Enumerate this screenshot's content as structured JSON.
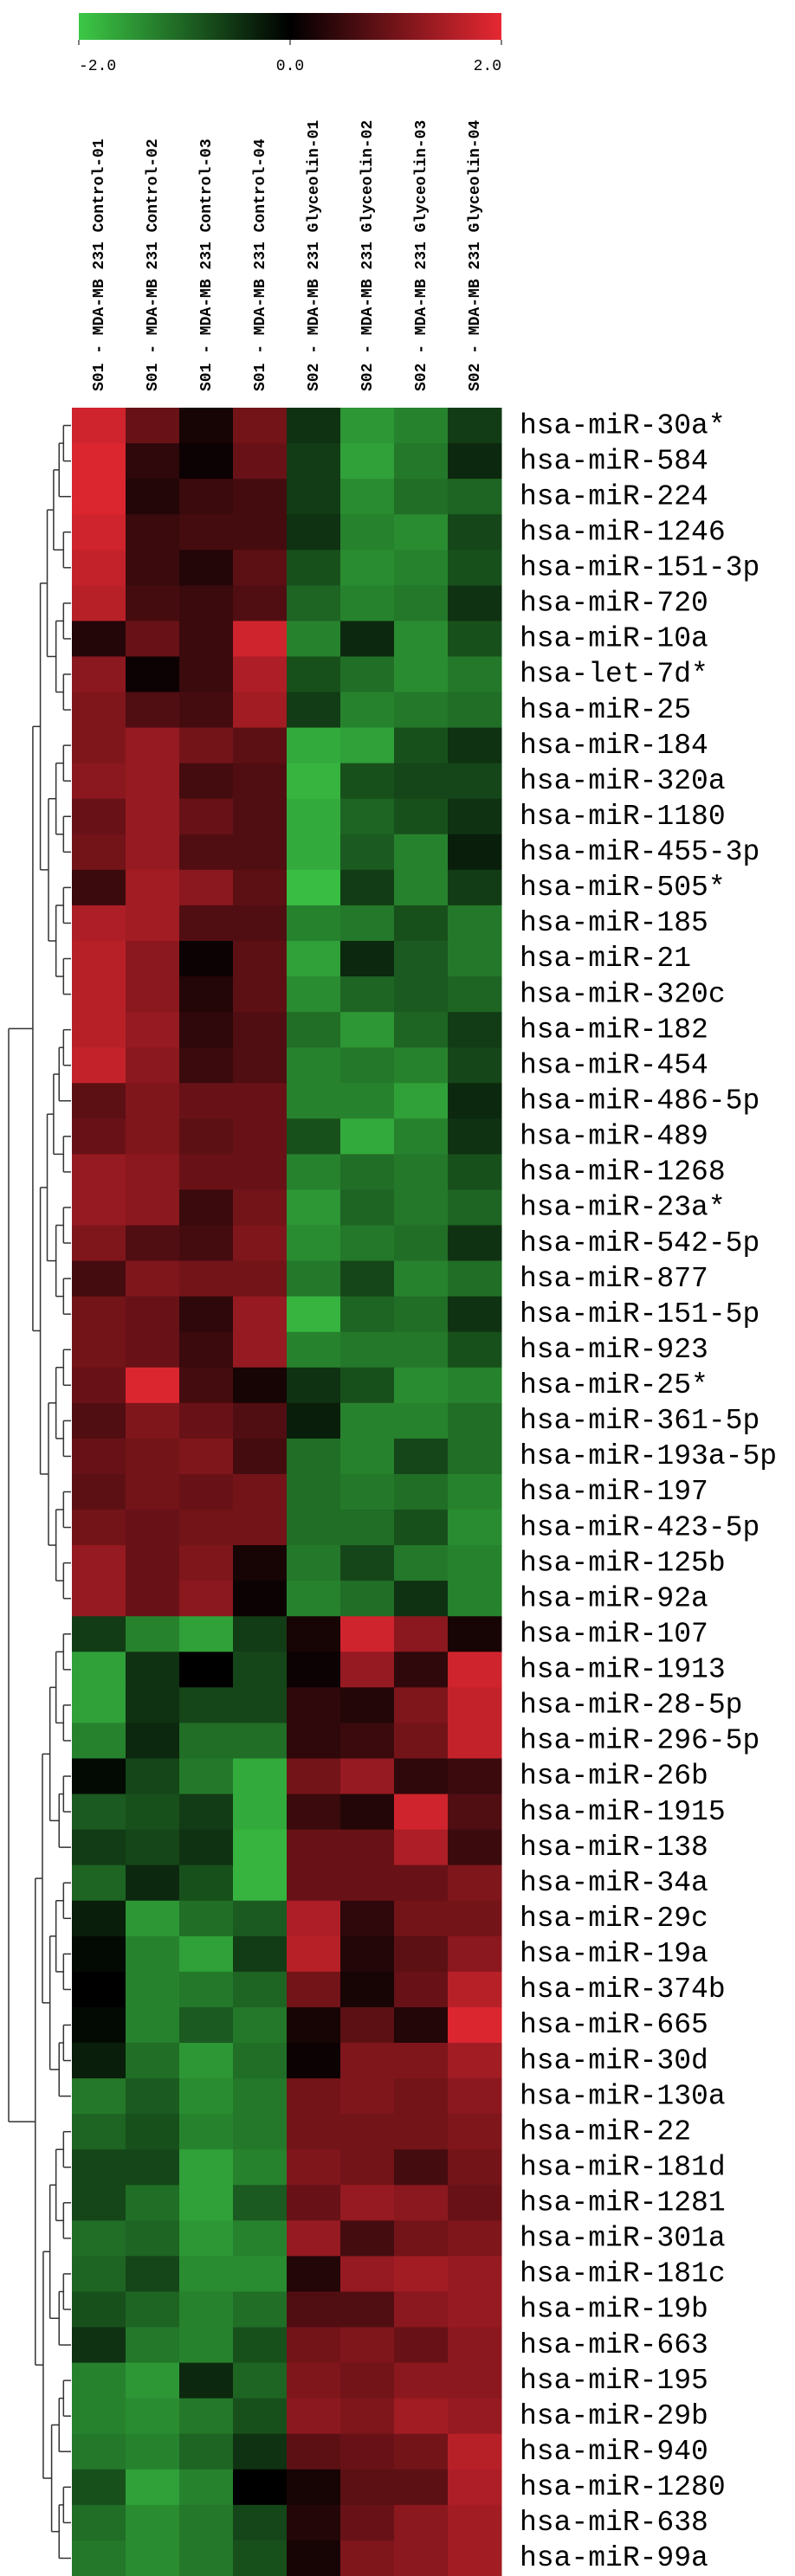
{
  "chart_data": {
    "type": "heatmap",
    "colors": [
      "#3cc846",
      "#000000",
      "#e62832"
    ],
    "zlim": [
      -2,
      2
    ],
    "colorbar_ticks": [
      {
        "value": -2,
        "label": "-2.0"
      },
      {
        "value": 0,
        "label": "0.0"
      },
      {
        "value": 2,
        "label": "2.0"
      }
    ],
    "columns": [
      "S01 - MDA-MB 231 Control-01",
      "S01 - MDA-MB 231 Control-02",
      "S01 - MDA-MB 231 Control-03",
      "S01 - MDA-MB 231 Control-04",
      "S02 - MDA-MB 231 Glyceolin-01",
      "S02 - MDA-MB 231 Glyceolin-02",
      "S02 - MDA-MB 231 Glyceolin-03",
      "S02 - MDA-MB 231 Glyceolin-04"
    ],
    "rows": [
      "hsa-miR-30a*",
      "hsa-miR-584",
      "hsa-miR-224",
      "hsa-miR-1246",
      "hsa-miR-151-3p",
      "hsa-miR-720",
      "hsa-miR-10a",
      "hsa-let-7d*",
      "hsa-miR-25",
      "hsa-miR-184",
      "hsa-miR-320a",
      "hsa-miR-1180",
      "hsa-miR-455-3p",
      "hsa-miR-505*",
      "hsa-miR-185",
      "hsa-miR-21",
      "hsa-miR-320c",
      "hsa-miR-182",
      "hsa-miR-454",
      "hsa-miR-486-5p",
      "hsa-miR-489",
      "hsa-miR-1268",
      "hsa-miR-23a*",
      "hsa-miR-542-5p",
      "hsa-miR-877",
      "hsa-miR-151-5p",
      "hsa-miR-923",
      "hsa-miR-25*",
      "hsa-miR-361-5p",
      "hsa-miR-193a-5p",
      "hsa-miR-197",
      "hsa-miR-423-5p",
      "hsa-miR-125b",
      "hsa-miR-92a",
      "hsa-miR-107",
      "hsa-miR-1913",
      "hsa-miR-28-5p",
      "hsa-miR-296-5p",
      "hsa-miR-26b",
      "hsa-miR-1915",
      "hsa-miR-138",
      "hsa-miR-34a",
      "hsa-miR-29c",
      "hsa-miR-19a",
      "hsa-miR-374b",
      "hsa-miR-665",
      "hsa-miR-30d",
      "hsa-miR-130a",
      "hsa-miR-22",
      "hsa-miR-181d",
      "hsa-miR-1281",
      "hsa-miR-301a",
      "hsa-miR-181c",
      "hsa-miR-19b",
      "hsa-miR-663",
      "hsa-miR-195",
      "hsa-miR-29b",
      "hsa-miR-940",
      "hsa-miR-1280",
      "hsa-miR-638",
      "hsa-miR-99a"
    ],
    "values": [
      [
        1.8,
        0.9,
        0.2,
        1.0,
        -0.5,
        -1.5,
        -1.3,
        -0.6
      ],
      [
        1.9,
        0.4,
        0.1,
        0.9,
        -0.6,
        -1.6,
        -1.2,
        -0.4
      ],
      [
        1.9,
        0.3,
        0.5,
        0.6,
        -0.6,
        -1.4,
        -1.1,
        -1.0
      ],
      [
        1.8,
        0.5,
        0.6,
        0.6,
        -0.5,
        -1.3,
        -1.4,
        -0.7
      ],
      [
        1.7,
        0.5,
        0.3,
        0.8,
        -0.8,
        -1.4,
        -1.3,
        -0.8
      ],
      [
        1.6,
        0.6,
        0.5,
        0.7,
        -1.0,
        -1.3,
        -1.2,
        -0.5
      ],
      [
        0.3,
        0.9,
        0.5,
        1.8,
        -1.3,
        -0.4,
        -1.4,
        -0.8
      ],
      [
        1.2,
        0.1,
        0.5,
        1.5,
        -0.8,
        -1.1,
        -1.4,
        -1.2
      ],
      [
        1.1,
        0.7,
        0.6,
        1.4,
        -0.6,
        -1.3,
        -1.2,
        -1.1
      ],
      [
        1.1,
        1.3,
        1.0,
        0.8,
        -1.7,
        -1.6,
        -0.8,
        -0.5
      ],
      [
        1.2,
        1.3,
        0.6,
        0.7,
        -1.8,
        -0.8,
        -0.7,
        -0.7
      ],
      [
        0.9,
        1.3,
        0.9,
        0.7,
        -1.7,
        -1.0,
        -0.8,
        -0.5
      ],
      [
        1.0,
        1.3,
        0.7,
        0.7,
        -1.7,
        -0.9,
        -1.3,
        -0.3
      ],
      [
        0.5,
        1.4,
        1.2,
        0.8,
        -1.9,
        -0.6,
        -1.3,
        -0.6
      ],
      [
        1.5,
        1.4,
        0.7,
        0.7,
        -1.3,
        -1.2,
        -0.8,
        -1.2
      ],
      [
        1.6,
        1.2,
        0.1,
        0.8,
        -1.6,
        -0.4,
        -0.9,
        -1.2
      ],
      [
        1.6,
        1.2,
        0.3,
        0.8,
        -1.4,
        -1.0,
        -0.9,
        -1.0
      ],
      [
        1.6,
        1.3,
        0.4,
        0.7,
        -1.1,
        -1.5,
        -1.0,
        -0.6
      ],
      [
        1.7,
        1.2,
        0.5,
        0.7,
        -1.3,
        -1.2,
        -1.3,
        -0.7
      ],
      [
        0.8,
        1.1,
        0.9,
        0.9,
        -1.3,
        -1.3,
        -1.6,
        -0.4
      ],
      [
        0.9,
        1.1,
        0.8,
        0.9,
        -0.8,
        -1.7,
        -1.3,
        -0.5
      ],
      [
        1.3,
        1.2,
        0.9,
        0.9,
        -1.3,
        -1.1,
        -1.2,
        -0.8
      ],
      [
        1.3,
        1.2,
        0.5,
        1.0,
        -1.5,
        -1.0,
        -1.2,
        -1.0
      ],
      [
        1.1,
        0.7,
        0.6,
        1.1,
        -1.4,
        -1.2,
        -1.1,
        -0.5
      ],
      [
        0.6,
        1.1,
        1.0,
        1.0,
        -1.2,
        -0.7,
        -1.3,
        -1.1
      ],
      [
        1.0,
        0.9,
        0.4,
        1.3,
        -1.8,
        -1.0,
        -1.1,
        -0.5
      ],
      [
        1.0,
        0.9,
        0.5,
        1.3,
        -1.3,
        -1.2,
        -1.2,
        -0.8
      ],
      [
        0.9,
        1.9,
        0.6,
        0.2,
        -0.5,
        -0.8,
        -1.4,
        -1.3
      ],
      [
        0.7,
        1.1,
        0.9,
        0.7,
        -0.3,
        -1.3,
        -1.3,
        -1.1
      ],
      [
        0.9,
        1.0,
        1.1,
        0.6,
        -1.1,
        -1.3,
        -0.7,
        -1.1
      ],
      [
        0.8,
        1.0,
        0.9,
        1.0,
        -1.1,
        -1.2,
        -1.1,
        -1.3
      ],
      [
        1.0,
        0.9,
        1.0,
        1.0,
        -1.1,
        -1.1,
        -0.8,
        -1.4
      ],
      [
        1.3,
        0.9,
        1.1,
        0.2,
        -1.2,
        -0.7,
        -1.2,
        -1.3
      ],
      [
        1.3,
        0.9,
        1.2,
        0.1,
        -1.3,
        -1.1,
        -0.5,
        -1.3
      ],
      [
        -0.6,
        -1.3,
        -1.6,
        -0.6,
        0.2,
        1.8,
        1.2,
        0.2
      ],
      [
        -1.6,
        -0.5,
        0.0,
        -0.7,
        0.1,
        1.3,
        0.4,
        1.8
      ],
      [
        -1.6,
        -0.5,
        -0.7,
        -0.7,
        0.4,
        0.3,
        1.1,
        1.7
      ],
      [
        -1.3,
        -0.4,
        -1.1,
        -1.1,
        0.4,
        0.5,
        1.0,
        1.7
      ],
      [
        -0.1,
        -0.7,
        -1.2,
        -1.7,
        1.0,
        1.3,
        0.4,
        0.5
      ],
      [
        -0.9,
        -0.8,
        -0.6,
        -1.7,
        0.5,
        0.3,
        1.8,
        0.7
      ],
      [
        -0.6,
        -0.7,
        -0.5,
        -1.8,
        0.9,
        0.9,
        1.5,
        0.5
      ],
      [
        -1.0,
        -0.4,
        -0.8,
        -1.8,
        0.9,
        0.9,
        0.9,
        1.1
      ],
      [
        -0.3,
        -1.5,
        -1.1,
        -0.9,
        1.5,
        0.4,
        1.0,
        1.0
      ],
      [
        -0.1,
        -1.3,
        -1.6,
        -0.6,
        1.6,
        0.3,
        0.8,
        1.2
      ],
      [
        0.0,
        -1.3,
        -1.2,
        -1.0,
        1.0,
        0.2,
        0.9,
        1.6
      ],
      [
        -0.1,
        -1.3,
        -0.9,
        -1.2,
        0.2,
        0.8,
        0.3,
        1.9
      ],
      [
        -0.3,
        -1.1,
        -1.5,
        -1.1,
        0.1,
        1.1,
        1.1,
        1.4
      ],
      [
        -1.2,
        -0.9,
        -1.4,
        -1.2,
        1.0,
        1.1,
        1.0,
        1.2
      ],
      [
        -1.0,
        -0.8,
        -1.3,
        -1.2,
        1.0,
        1.0,
        1.0,
        1.1
      ],
      [
        -0.7,
        -0.7,
        -1.6,
        -1.3,
        1.1,
        1.0,
        0.6,
        1.0
      ],
      [
        -0.7,
        -1.1,
        -1.6,
        -0.9,
        0.9,
        1.3,
        1.2,
        0.9
      ],
      [
        -1.1,
        -1.0,
        -1.5,
        -1.3,
        1.3,
        0.6,
        1.0,
        1.1
      ],
      [
        -1.0,
        -0.7,
        -1.4,
        -1.4,
        0.3,
        1.3,
        1.4,
        1.3
      ],
      [
        -0.8,
        -1.0,
        -1.3,
        -1.1,
        0.7,
        0.7,
        1.2,
        1.3
      ],
      [
        -0.5,
        -1.2,
        -1.3,
        -0.8,
        1.0,
        1.1,
        0.9,
        1.2
      ],
      [
        -1.3,
        -1.5,
        -0.4,
        -1.0,
        1.1,
        1.0,
        1.2,
        1.2
      ],
      [
        -1.3,
        -1.4,
        -1.2,
        -0.8,
        1.2,
        1.1,
        1.4,
        1.3
      ],
      [
        -1.2,
        -1.3,
        -1.0,
        -0.5,
        0.8,
        0.9,
        1.0,
        1.6
      ],
      [
        -0.8,
        -1.6,
        -1.3,
        0.0,
        0.2,
        0.8,
        0.8,
        1.5
      ],
      [
        -1.1,
        -1.4,
        -1.2,
        -0.7,
        0.3,
        0.9,
        1.2,
        1.4
      ],
      [
        -1.2,
        -1.4,
        -1.2,
        -0.8,
        0.2,
        1.1,
        1.2,
        1.4
      ]
    ]
  }
}
